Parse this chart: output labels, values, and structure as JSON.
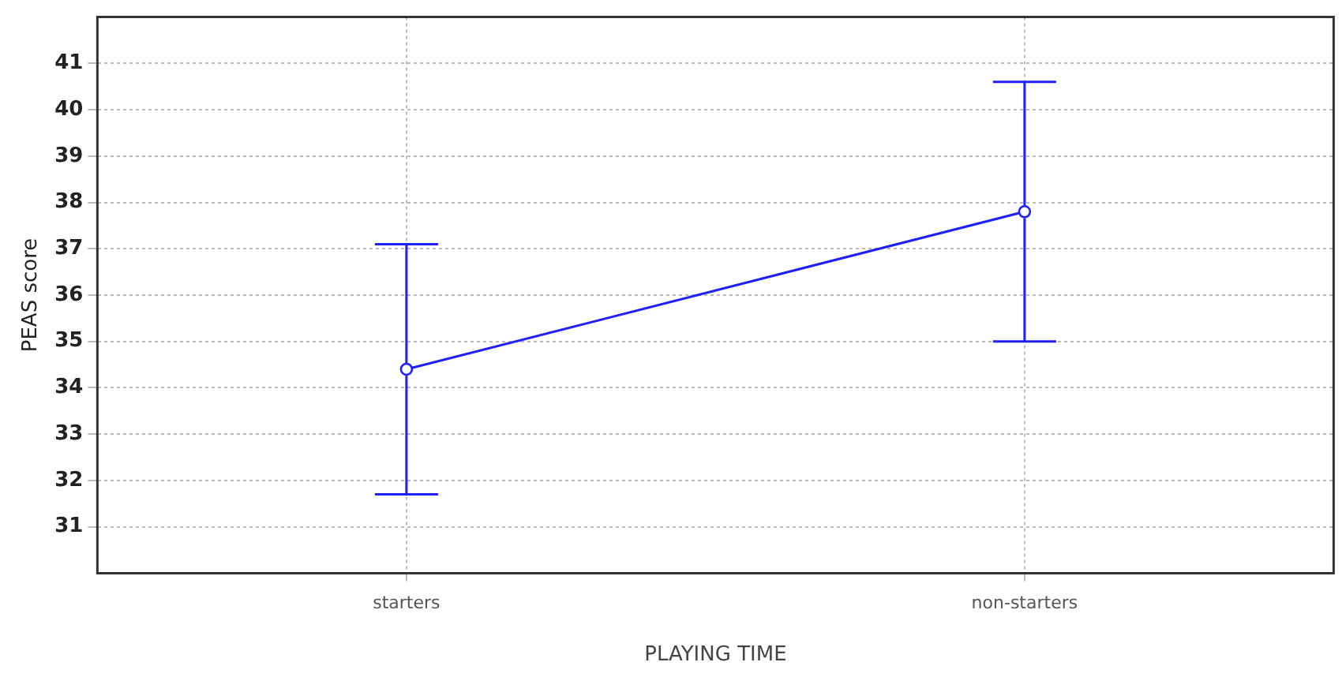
{
  "chart_data": {
    "type": "line",
    "xlabel": "PLAYING TIME",
    "ylabel": "PEAS score",
    "categories": [
      "starters",
      "non-starters"
    ],
    "series": [
      {
        "color": "#1f1fff",
        "values": [
          34.4,
          37.8
        ],
        "errors": [
          2.7,
          2.8
        ]
      }
    ],
    "ylim": [
      30,
      42
    ],
    "yticks": [
      31,
      32,
      33,
      34,
      35,
      36,
      37,
      38,
      39,
      40,
      41
    ],
    "grid": true,
    "legend": false,
    "marker": "circle",
    "line_style": "solid"
  }
}
